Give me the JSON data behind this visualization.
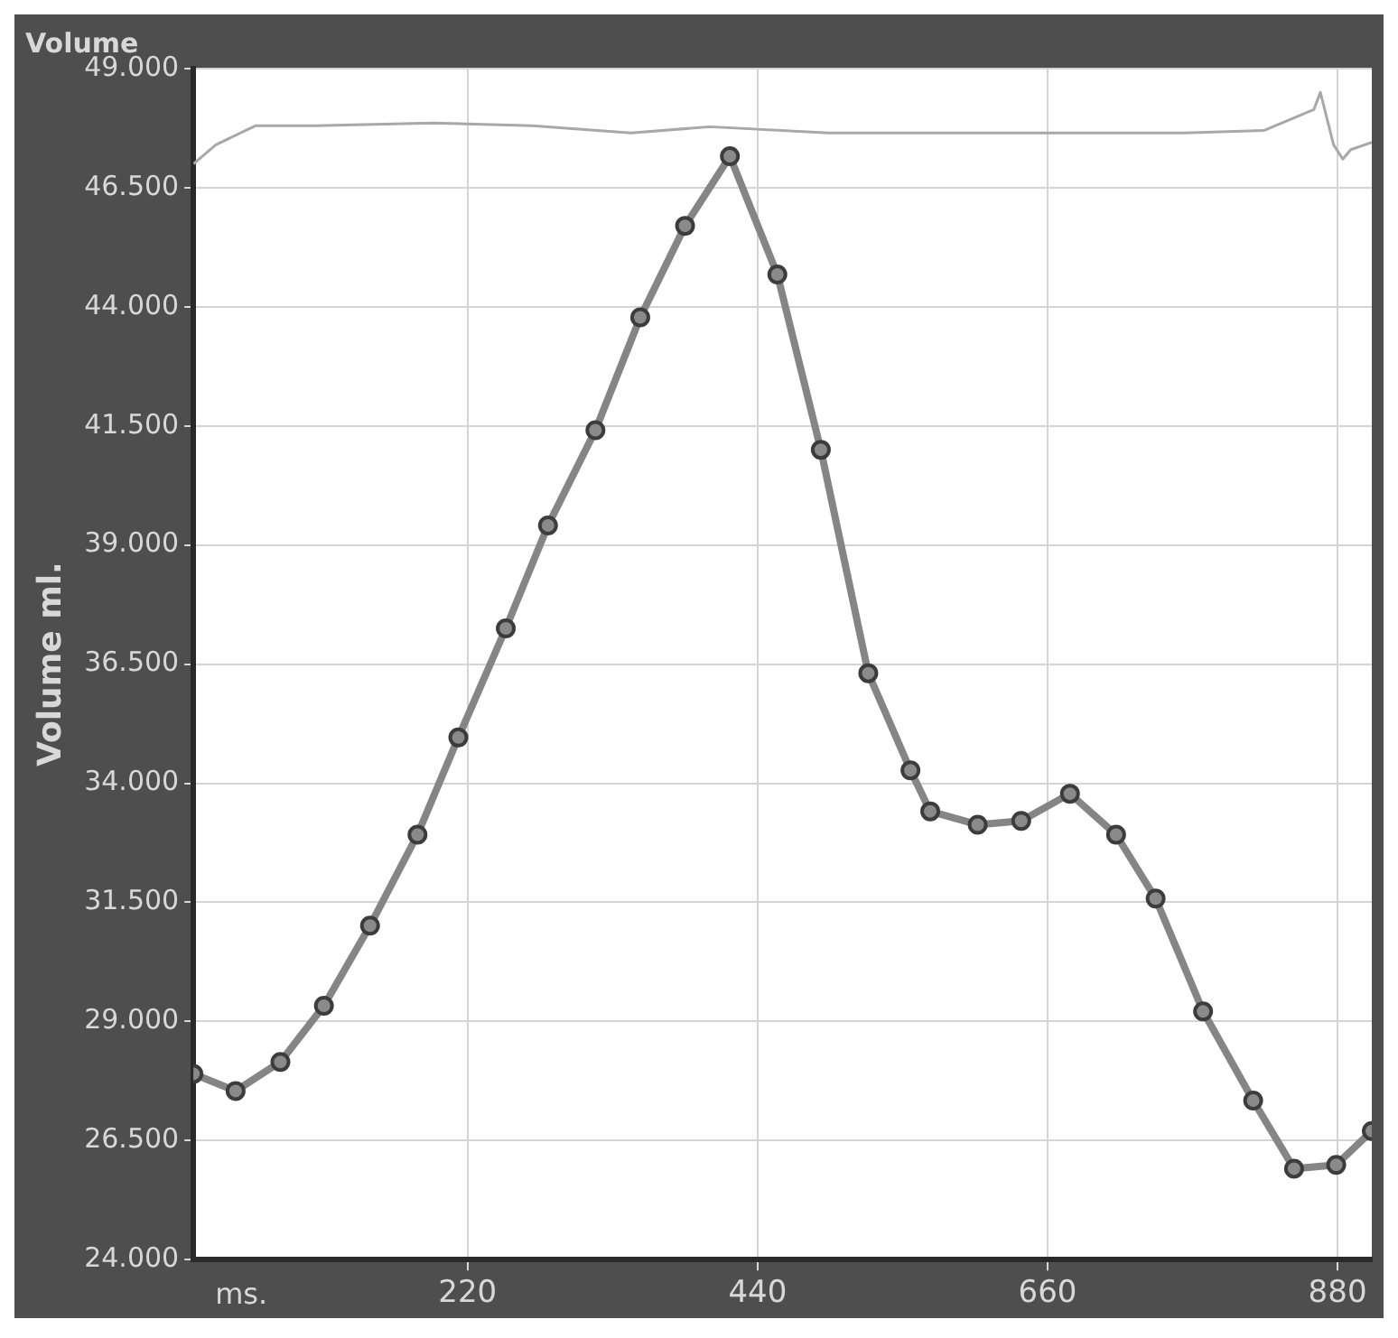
{
  "chart_data": {
    "type": "line",
    "title": "Volume",
    "xlabel": "ms.",
    "ylabel": "Volume ml.",
    "xlim": [
      12,
      906
    ],
    "xticks": [
      220,
      440,
      660,
      880
    ],
    "ylim": [
      24,
      49
    ],
    "yticks": [
      {
        "value": 24,
        "label": "24.000"
      },
      {
        "value": 26.5,
        "label": "26.500"
      },
      {
        "value": 29,
        "label": "29.000"
      },
      {
        "value": 31.5,
        "label": "31.500"
      },
      {
        "value": 34,
        "label": "34.000"
      },
      {
        "value": 36.5,
        "label": "36.500"
      },
      {
        "value": 39,
        "label": "39.000"
      },
      {
        "value": 41.5,
        "label": "41.500"
      },
      {
        "value": 44,
        "label": "44.000"
      },
      {
        "value": 46.5,
        "label": "46.500"
      },
      {
        "value": 49,
        "label": "49.000"
      }
    ],
    "grid": true,
    "legend": false,
    "line_style": "solid",
    "series": [
      {
        "color": "#a8a8a8",
        "marker": "none",
        "x": [
          12,
          29,
          59,
          104,
          194,
          269,
          344,
          404,
          494,
          644,
          764,
          824,
          862,
          867,
          877,
          884,
          890,
          906
        ],
        "values": [
          47.0,
          47.4,
          47.8,
          47.8,
          47.86,
          47.8,
          47.65,
          47.78,
          47.65,
          47.65,
          47.65,
          47.7,
          48.14,
          48.5,
          47.4,
          47.1,
          47.3,
          47.45
        ]
      },
      {
        "color": "#858585",
        "marker": "circle",
        "x": [
          12,
          44,
          78,
          111,
          146,
          182,
          213,
          249,
          281,
          317,
          351,
          385,
          419,
          455,
          488,
          524,
          556,
          571,
          607,
          640,
          677,
          712,
          742,
          778,
          816,
          847,
          879,
          906
        ],
        "values": [
          27.9,
          27.54,
          28.15,
          29.33,
          31.01,
          32.92,
          34.96,
          37.25,
          39.41,
          41.41,
          43.78,
          45.7,
          47.16,
          44.68,
          41.0,
          36.31,
          34.27,
          33.41,
          33.13,
          33.21,
          33.78,
          32.92,
          31.58,
          29.21,
          27.34,
          25.91,
          25.99,
          26.7
        ]
      }
    ]
  }
}
